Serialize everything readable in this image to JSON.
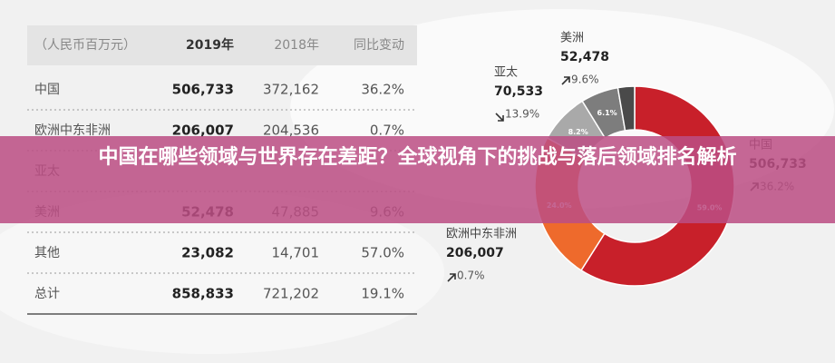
{
  "banner": {
    "title": "中国在哪些领域与世界存在差距？全球视角下的挑战与落后领域排名解析"
  },
  "table": {
    "header": [
      "（人民币百万元）",
      "2019年",
      "2018年",
      "同比变动"
    ],
    "rows": [
      [
        "中国",
        "506,733",
        "372,162",
        "36.2%"
      ],
      [
        "欧洲中东非洲",
        "206,007",
        "204,536",
        "0.7%"
      ],
      [
        "亚太"
      ],
      [
        "美洲",
        "52,478",
        "47,885",
        "9.6%"
      ],
      [
        "其他",
        "23,082",
        "14,701",
        "57.0%"
      ],
      [
        "总计",
        "858,833",
        "721,202",
        "19.1%"
      ]
    ]
  },
  "chart_data": {
    "type": "pie",
    "categories": [
      "中国",
      "欧洲中东非洲",
      "亚太",
      "美洲",
      null
    ],
    "values": [
      59.0,
      24.0,
      8.2,
      6.1,
      2.7
    ],
    "value_labels": [
      "59.0%",
      "24.0%",
      "8.2%",
      "6.1%",
      null
    ],
    "colors": [
      "#c8202a",
      "#ee6a2c",
      "#a9a9a9",
      "#7d7d7d",
      "#4a4a4a"
    ],
    "amounts": [
      "506,733",
      "206,007",
      "70,533",
      "52,478",
      null
    ],
    "changes": [
      "36.2%",
      "0.7%",
      "13.9%",
      "9.6%",
      null
    ]
  }
}
